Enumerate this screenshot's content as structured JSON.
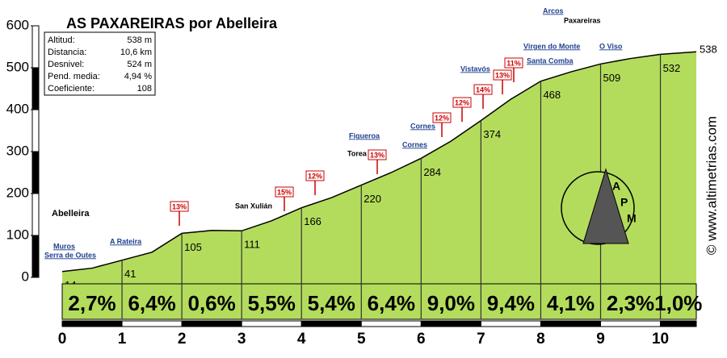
{
  "chart_data": {
    "type": "profile",
    "title": "AS PAXAREIRAS por Abelleira",
    "info": {
      "labels": [
        "Altitud:",
        "Distancia:",
        "Desnivel:",
        "Pend. media:",
        "Coeficiente:"
      ],
      "values": [
        "538 m",
        "10,6 km",
        "524 m",
        "4,94 %",
        "108"
      ]
    },
    "x": [
      0,
      0.5,
      1,
      1.5,
      2,
      2.5,
      3,
      3.5,
      4,
      4.5,
      5,
      5.5,
      6,
      6.5,
      7,
      7.5,
      8,
      8.5,
      9,
      9.5,
      10,
      10.6
    ],
    "values": [
      14,
      22,
      41,
      60,
      105,
      112,
      111,
      135,
      166,
      190,
      220,
      250,
      284,
      325,
      374,
      425,
      468,
      490,
      509,
      522,
      532,
      538
    ],
    "color": "#b3dc5c",
    "slope_labels": [
      "2,7%",
      "6,4%",
      "0,6%",
      "5,5%",
      "5,4%",
      "6,4%",
      "9,0%",
      "9,4%",
      "4,1%",
      "2,3%",
      "1,0%"
    ],
    "xlim": [
      0,
      10.6
    ],
    "xticks": [
      0,
      1,
      2,
      3,
      4,
      5,
      6,
      7,
      8,
      9,
      10
    ],
    "ylim": [
      0,
      600
    ],
    "yticks": [
      0,
      100,
      200,
      300,
      400,
      500,
      600
    ],
    "places": [
      "Abelleira",
      "Muros",
      "Serra de Outes",
      "A Rateira",
      "San Xulián",
      "Torea",
      "Figueroa",
      "Cornes",
      "Cornes",
      "Vistavós",
      "Santa Comba",
      "Virgen do Monte",
      "Arcos",
      "Paxareiras",
      "O Viso"
    ],
    "signs": [
      "13%",
      "15%",
      "12%",
      "13%",
      "12%",
      "12%",
      "14%",
      "13%",
      "11%"
    ],
    "logo": [
      "A",
      "P",
      "M"
    ],
    "credit": "© www.altimetrias.com"
  }
}
